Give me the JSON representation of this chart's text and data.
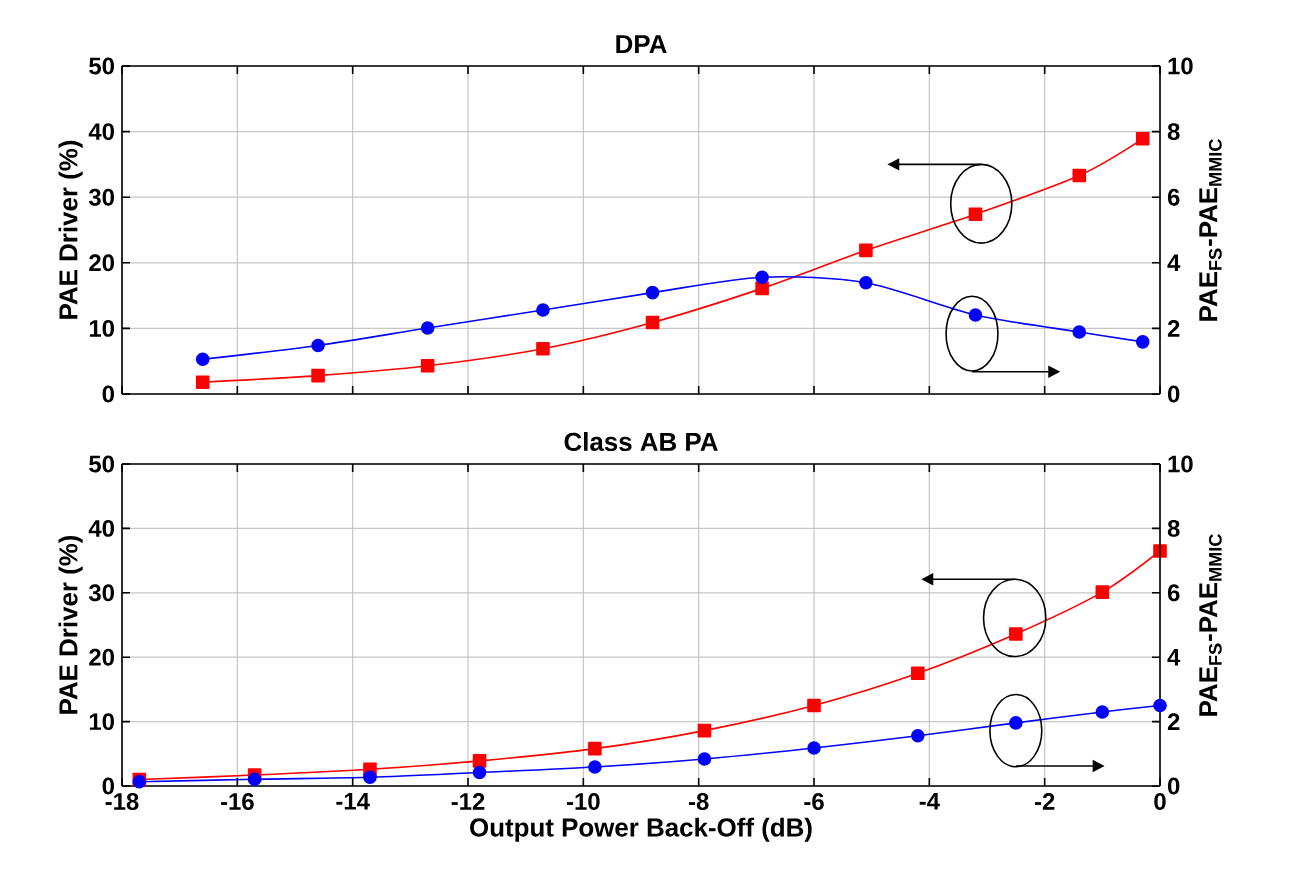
{
  "chart_data": [
    {
      "type": "line",
      "title": "DPA",
      "ylabel": "PAE Driver (%)",
      "y2label": "PAE$_{FS}$-PAE$_{MMIC}$",
      "xlim": [
        -18,
        0
      ],
      "xticks": [
        -18,
        -16,
        -14,
        -12,
        -10,
        -8,
        -6,
        -4,
        -2,
        0
      ],
      "ylim": [
        0,
        50
      ],
      "yticks": [
        0,
        10,
        20,
        30,
        40,
        50
      ],
      "y2lim": [
        0,
        10
      ],
      "y2ticks": [
        0,
        2,
        4,
        6,
        8,
        10
      ],
      "grid": true,
      "tick_labels": "y",
      "series": [
        {
          "color": "#ff0000",
          "marker": "square",
          "x": [
            -16.6,
            -14.6,
            -12.7,
            -10.7,
            -8.8,
            -6.9,
            -5.1,
            -3.2,
            -1.4,
            -0.3
          ],
          "values": [
            1.8,
            2.8,
            4.3,
            6.9,
            10.9,
            16.1,
            21.9,
            27.4,
            33.3,
            38.9
          ]
        },
        {
          "color": "#0000ff",
          "marker": "circle",
          "axis": "y2",
          "x": [
            -16.6,
            -14.6,
            -12.7,
            -10.7,
            -8.8,
            -6.9,
            -5.1,
            -3.2,
            -1.4,
            -0.3
          ],
          "values": [
            1.06,
            1.48,
            2.01,
            2.56,
            3.09,
            3.56,
            3.39,
            2.41,
            1.89,
            1.59
          ]
        }
      ]
    },
    {
      "type": "line",
      "title": "Class AB PA",
      "xlabel": "Output Power Back-Off (dB)",
      "ylabel": "PAE Driver (%)",
      "y2label": "PAE$_{FS}$-PAE$_{MMIC}$",
      "xlim": [
        -18,
        0
      ],
      "xticks": [
        -18,
        -16,
        -14,
        -12,
        -10,
        -8,
        -6,
        -4,
        -2,
        0
      ],
      "ylim": [
        0,
        50
      ],
      "yticks": [
        0,
        10,
        20,
        30,
        40,
        50
      ],
      "y2lim": [
        0,
        10
      ],
      "y2ticks": [
        0,
        2,
        4,
        6,
        8,
        10
      ],
      "grid": true,
      "series": [
        {
          "color": "#ff0000",
          "marker": "square",
          "x": [
            -17.7,
            -15.7,
            -13.7,
            -11.8,
            -9.8,
            -7.9,
            -6.0,
            -4.2,
            -2.5,
            -1.0,
            0
          ],
          "values": [
            1.0,
            1.7,
            2.6,
            3.9,
            5.8,
            8.6,
            12.5,
            17.5,
            23.6,
            30.1,
            36.5
          ]
        },
        {
          "color": "#0000ff",
          "marker": "circle",
          "axis": "y2",
          "x": [
            -17.7,
            -15.7,
            -13.7,
            -11.8,
            -9.8,
            -7.9,
            -6.0,
            -4.2,
            -2.5,
            -1.0,
            0
          ],
          "values": [
            0.13,
            0.21,
            0.27,
            0.42,
            0.59,
            0.84,
            1.18,
            1.56,
            1.96,
            2.3,
            2.5
          ]
        }
      ]
    }
  ]
}
